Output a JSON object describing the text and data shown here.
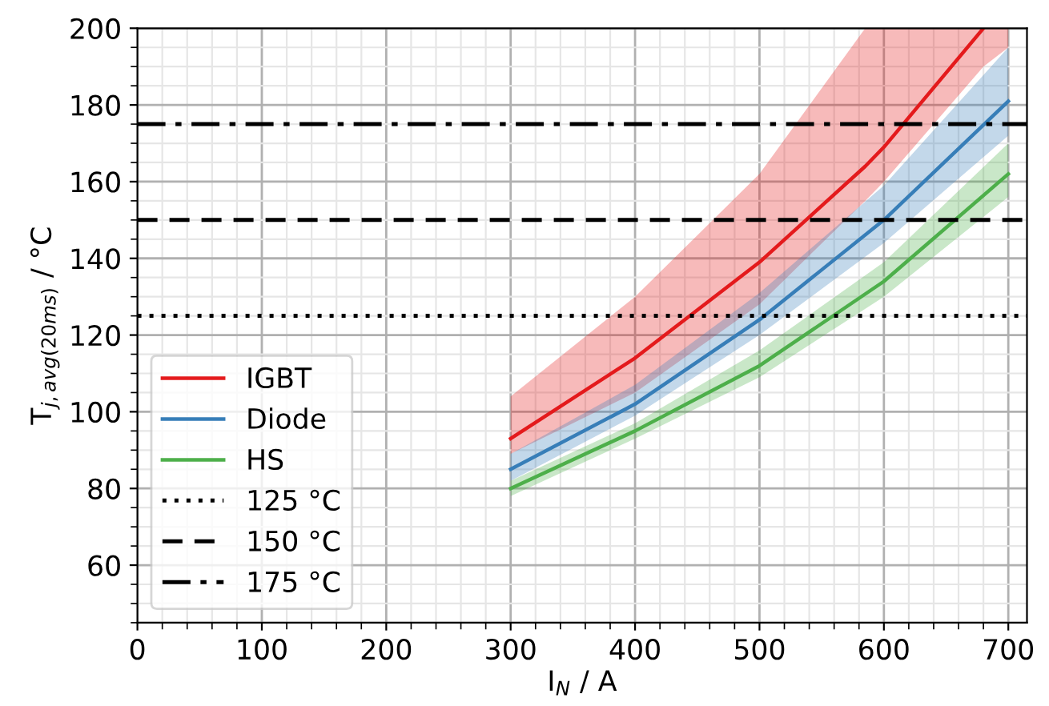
{
  "chart_data": {
    "type": "line",
    "xlabel": "I$_{N}$ / A",
    "ylabel": "T$_{j,avg(20ms)}$ / °C",
    "xlim": [
      0,
      715
    ],
    "ylim": [
      45,
      200
    ],
    "xticks": [
      0,
      100,
      200,
      300,
      400,
      500,
      600,
      700
    ],
    "yticks": [
      60,
      80,
      100,
      120,
      140,
      160,
      180,
      200
    ],
    "x": [
      300,
      400,
      500,
      600,
      700
    ],
    "series": [
      {
        "name": "IGBT",
        "color": "#e41a1c",
        "x": [
          300,
          400,
          500,
          585,
          600,
          680,
          700
        ],
        "values": [
          93,
          114,
          139,
          164,
          169,
          200,
          null
        ],
        "lower": [
          89,
          105,
          128,
          155,
          160,
          190,
          195
        ],
        "upper": [
          104,
          130,
          162,
          200,
          200,
          200,
          200
        ]
      },
      {
        "name": "Diode",
        "color": "#377eb8",
        "values": [
          85,
          102,
          124,
          150,
          181
        ],
        "lower": [
          82,
          99,
          120,
          144,
          172
        ],
        "upper": [
          89,
          107,
          131,
          159,
          195
        ]
      },
      {
        "name": "HS",
        "color": "#4daf4a",
        "values": [
          80,
          95,
          112,
          134,
          162
        ],
        "lower": [
          78,
          93,
          109,
          130,
          156
        ],
        "upper": [
          82,
          97,
          116,
          139,
          170
        ]
      }
    ],
    "ref_lines": [
      {
        "axis": "y",
        "value": 125,
        "label": "125 °C",
        "color": "#000000",
        "line_style": "dotted"
      },
      {
        "axis": "y",
        "value": 150,
        "label": "150 °C",
        "color": "#000000",
        "line_style": "dashed"
      },
      {
        "axis": "y",
        "value": 175,
        "label": "175 °C",
        "color": "#000000",
        "line_style": "dashdot"
      }
    ],
    "grid": true,
    "legend": "bottom left"
  }
}
